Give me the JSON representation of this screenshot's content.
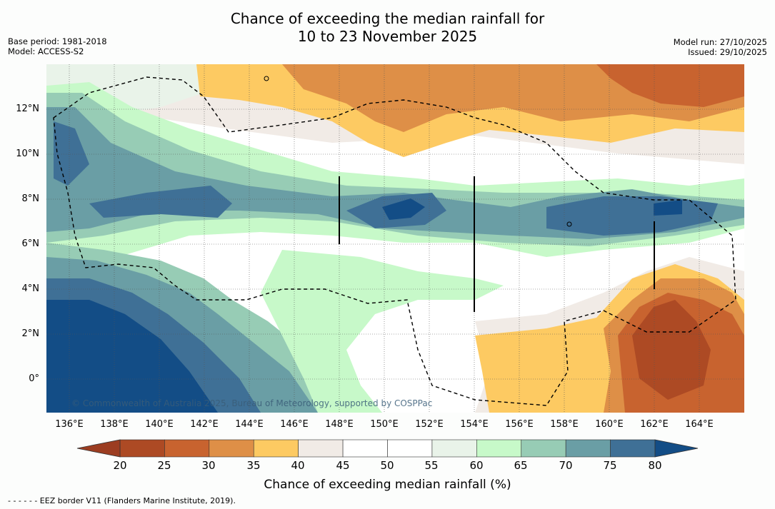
{
  "title": {
    "line1": "Chance of exceeding the median rainfall for",
    "line2": "10 to 23 November 2025"
  },
  "meta": {
    "base_period": "Base period: 1981-2018",
    "model": "Model: ACCESS-S2",
    "model_run": "Model run: 27/10/2025",
    "issued": "Issued: 29/10/2025"
  },
  "map": {
    "longitudes": [
      "136°E",
      "138°E",
      "140°E",
      "142°E",
      "144°E",
      "146°E",
      "148°E",
      "150°E",
      "152°E",
      "154°E",
      "156°E",
      "158°E",
      "160°E",
      "162°E",
      "164°E"
    ],
    "latitudes": [
      "12°N",
      "10°N",
      "8°N",
      "6°N",
      "4°N",
      "2°N",
      "0°"
    ],
    "copyright": "© Commonwealth of Australia 2025, Bureau of Meteorology, supported by COSPPac"
  },
  "colorbar": {
    "ticks": [
      "20",
      "25",
      "30",
      "35",
      "40",
      "45",
      "50",
      "55",
      "60",
      "65",
      "70",
      "75",
      "80"
    ],
    "colors": [
      "#ad4a24",
      "#c8632f",
      "#de8f47",
      "#fdca62",
      "#f1ebe6",
      "#ffffff",
      "#ffffff",
      "#e9f3e9",
      "#c7f9c9",
      "#97ccb5",
      "#6a9ea5",
      "#3f7096"
    ],
    "under_color": "#9c3d21",
    "over_color": "#134d86",
    "label": "Chance of exceeding median rainfall (%)"
  },
  "footer": {
    "legend_line": "- -  - -  - - EEZ border V11 (Flanders Marine Institute, 2019)."
  }
}
